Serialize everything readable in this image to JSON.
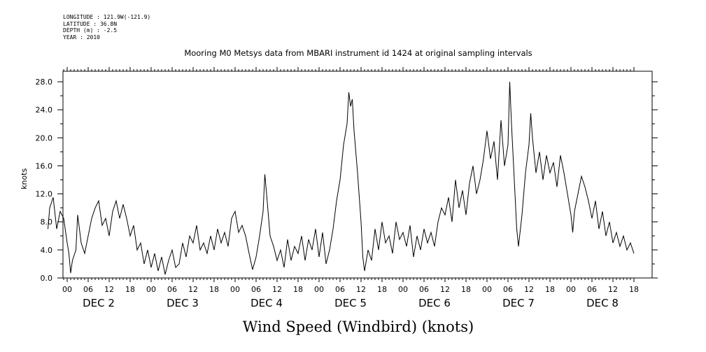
{
  "header": {
    "longitude": "LONGITUDE : 121.9W(-121.9)",
    "latitude": "LATITUDE : 36.8N",
    "depth": "DEPTH (m) : -2.5",
    "year": "YEAR : 2010"
  },
  "chart_data": {
    "type": "line",
    "title": "Mooring M0 Metsys data from MBARI instrument id 1424 at original sampling intervals",
    "ylabel": "knots",
    "xlabel": "Wind Speed (Windbird) (knots)",
    "ylim": [
      0,
      29.5
    ],
    "yticks": [
      "0.0",
      "4.0",
      "8.0",
      "12.0",
      "16.0",
      "20.0",
      "24.0",
      "28.0"
    ],
    "x_units": "hours since DEC 1 2010 18:00",
    "xlim": [
      0,
      168
    ],
    "x_hour_labels": [
      "00",
      "06",
      "12",
      "18"
    ],
    "x_day_labels": [
      "DEC 2",
      "DEC 3",
      "DEC 4",
      "DEC 5",
      "DEC 6",
      "DEC 7",
      "DEC 8"
    ],
    "line_color": "#000000",
    "grid": false,
    "series": [
      {
        "values": [
          [
            0.5,
            7.0
          ],
          [
            1.0,
            10.0
          ],
          [
            2.0,
            11.5
          ],
          [
            3.0,
            7.0
          ],
          [
            4.0,
            9.5
          ],
          [
            5.0,
            8.5
          ],
          [
            6.0,
            5.0
          ],
          [
            6.5,
            3.5
          ],
          [
            7.0,
            0.7
          ],
          [
            7.5,
            2.5
          ],
          [
            8.5,
            4.0
          ],
          [
            9.0,
            9.0
          ],
          [
            10.0,
            5.0
          ],
          [
            11.0,
            3.5
          ],
          [
            12.0,
            6.0
          ],
          [
            13.0,
            8.5
          ],
          [
            14.0,
            10.0
          ],
          [
            15.0,
            11.0
          ],
          [
            16.0,
            7.5
          ],
          [
            17.0,
            8.5
          ],
          [
            18.0,
            6.0
          ],
          [
            19.0,
            9.5
          ],
          [
            20.0,
            11.0
          ],
          [
            21.0,
            8.5
          ],
          [
            22.0,
            10.5
          ],
          [
            23.0,
            8.5
          ],
          [
            24.0,
            6.0
          ],
          [
            25.0,
            7.5
          ],
          [
            26.0,
            4.0
          ],
          [
            27.0,
            5.0
          ],
          [
            28.0,
            2.0
          ],
          [
            29.0,
            4.0
          ],
          [
            30.0,
            1.5
          ],
          [
            31.0,
            3.5
          ],
          [
            32.0,
            1.0
          ],
          [
            33.0,
            3.0
          ],
          [
            34.0,
            0.5
          ],
          [
            35.0,
            2.5
          ],
          [
            36.0,
            4.0
          ],
          [
            37.0,
            1.5
          ],
          [
            38.0,
            2.0
          ],
          [
            39.0,
            5.0
          ],
          [
            40.0,
            3.0
          ],
          [
            41.0,
            6.0
          ],
          [
            42.0,
            5.0
          ],
          [
            43.0,
            7.5
          ],
          [
            44.0,
            4.0
          ],
          [
            45.0,
            5.0
          ],
          [
            46.0,
            3.5
          ],
          [
            47.0,
            6.0
          ],
          [
            48.0,
            4.0
          ],
          [
            49.0,
            7.0
          ],
          [
            50.0,
            5.0
          ],
          [
            51.0,
            6.5
          ],
          [
            52.0,
            4.5
          ],
          [
            53.0,
            8.5
          ],
          [
            54.0,
            9.5
          ],
          [
            55.0,
            6.5
          ],
          [
            56.0,
            7.5
          ],
          [
            57.0,
            6.0
          ],
          [
            58.0,
            3.5
          ],
          [
            59.0,
            1.2
          ],
          [
            60.0,
            3.0
          ],
          [
            61.0,
            6.0
          ],
          [
            62.0,
            9.5
          ],
          [
            62.5,
            14.8
          ],
          [
            63.0,
            12.0
          ],
          [
            63.5,
            9.0
          ],
          [
            64.0,
            6.0
          ],
          [
            65.0,
            4.5
          ],
          [
            66.0,
            2.5
          ],
          [
            67.0,
            4.0
          ],
          [
            68.0,
            1.5
          ],
          [
            69.0,
            5.5
          ],
          [
            70.0,
            2.5
          ],
          [
            71.0,
            4.5
          ],
          [
            72.0,
            3.5
          ],
          [
            73.0,
            6.0
          ],
          [
            74.0,
            2.5
          ],
          [
            75.0,
            5.5
          ],
          [
            76.0,
            4.0
          ],
          [
            77.0,
            7.0
          ],
          [
            78.0,
            3.0
          ],
          [
            79.0,
            6.5
          ],
          [
            80.0,
            2.0
          ],
          [
            81.0,
            4.0
          ],
          [
            82.0,
            7.0
          ],
          [
            83.0,
            11.0
          ],
          [
            84.0,
            14.0
          ],
          [
            85.0,
            19.0
          ],
          [
            86.0,
            22.0
          ],
          [
            86.5,
            26.5
          ],
          [
            87.0,
            24.5
          ],
          [
            87.5,
            25.5
          ],
          [
            88.0,
            21.0
          ],
          [
            89.0,
            15.0
          ],
          [
            90.0,
            8.0
          ],
          [
            90.5,
            3.0
          ],
          [
            91.0,
            1.0
          ],
          [
            92.0,
            4.0
          ],
          [
            93.0,
            2.5
          ],
          [
            94.0,
            7.0
          ],
          [
            95.0,
            4.0
          ],
          [
            96.0,
            8.0
          ],
          [
            97.0,
            5.0
          ],
          [
            98.0,
            6.0
          ],
          [
            99.0,
            3.5
          ],
          [
            100.0,
            8.0
          ],
          [
            101.0,
            5.5
          ],
          [
            102.0,
            6.5
          ],
          [
            103.0,
            4.5
          ],
          [
            104.0,
            7.5
          ],
          [
            105.0,
            3.0
          ],
          [
            106.0,
            6.0
          ],
          [
            107.0,
            4.0
          ],
          [
            108.0,
            7.0
          ],
          [
            109.0,
            5.0
          ],
          [
            110.0,
            6.5
          ],
          [
            111.0,
            4.5
          ],
          [
            112.0,
            8.0
          ],
          [
            113.0,
            10.0
          ],
          [
            114.0,
            9.0
          ],
          [
            115.0,
            11.5
          ],
          [
            116.0,
            8.0
          ],
          [
            117.0,
            14.0
          ],
          [
            118.0,
            10.0
          ],
          [
            119.0,
            12.5
          ],
          [
            120.0,
            9.0
          ],
          [
            121.0,
            13.5
          ],
          [
            122.0,
            16.0
          ],
          [
            123.0,
            12.0
          ],
          [
            124.0,
            14.0
          ],
          [
            125.0,
            17.0
          ],
          [
            126.0,
            21.0
          ],
          [
            127.0,
            17.0
          ],
          [
            128.0,
            19.5
          ],
          [
            129.0,
            14.0
          ],
          [
            130.0,
            22.5
          ],
          [
            131.0,
            16.0
          ],
          [
            132.0,
            19.0
          ],
          [
            132.5,
            28.0
          ],
          [
            133.0,
            22.0
          ],
          [
            134.0,
            12.0
          ],
          [
            134.5,
            7.0
          ],
          [
            135.0,
            4.5
          ],
          [
            136.0,
            9.0
          ],
          [
            137.0,
            15.0
          ],
          [
            138.0,
            19.0
          ],
          [
            138.5,
            23.5
          ],
          [
            139.0,
            20.0
          ],
          [
            140.0,
            15.0
          ],
          [
            141.0,
            18.0
          ],
          [
            142.0,
            14.0
          ],
          [
            143.0,
            17.5
          ],
          [
            144.0,
            15.0
          ],
          [
            145.0,
            16.5
          ],
          [
            146.0,
            13.0
          ],
          [
            147.0,
            17.5
          ],
          [
            148.0,
            15.0
          ],
          [
            149.0,
            12.0
          ],
          [
            150.0,
            9.0
          ],
          [
            150.5,
            6.5
          ],
          [
            151.0,
            9.5
          ],
          [
            152.0,
            12.0
          ],
          [
            153.0,
            14.5
          ],
          [
            154.0,
            13.0
          ],
          [
            155.0,
            11.0
          ],
          [
            156.0,
            8.5
          ],
          [
            157.0,
            11.0
          ],
          [
            158.0,
            7.0
          ],
          [
            159.0,
            9.5
          ],
          [
            160.0,
            6.0
          ],
          [
            161.0,
            8.0
          ],
          [
            162.0,
            5.0
          ],
          [
            163.0,
            6.5
          ],
          [
            164.0,
            4.5
          ],
          [
            165.0,
            6.0
          ],
          [
            166.0,
            4.0
          ],
          [
            167.0,
            5.0
          ],
          [
            168.0,
            3.5
          ]
        ]
      }
    ]
  }
}
